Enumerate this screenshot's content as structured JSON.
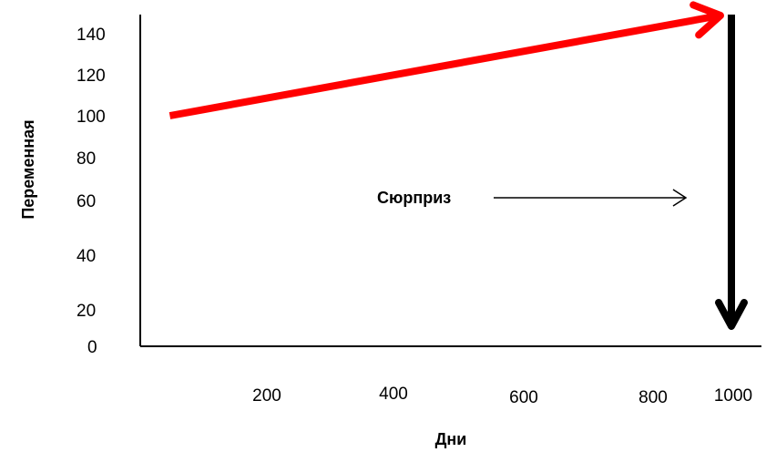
{
  "chart_data": {
    "type": "line",
    "title": "",
    "xlabel": "Дни",
    "ylabel": "Переменная",
    "x_ticks": [
      "200",
      "400",
      "600",
      "800",
      "1000"
    ],
    "y_ticks": [
      "0",
      "20",
      "40",
      "60",
      "80",
      "100",
      "120",
      "140"
    ],
    "xlim": [
      0,
      1000
    ],
    "ylim": [
      0,
      150
    ],
    "grid": false,
    "series": [
      {
        "color": "#ff0000",
        "x": [
          50,
          1000
        ],
        "y": [
          100,
          150
        ]
      }
    ],
    "annotations": [
      {
        "text": "Сюрприз",
        "arrow_direction": "right"
      }
    ],
    "drop_arrow": {
      "color": "#000000",
      "x": 1000,
      "y_from": 150,
      "y_to": 10
    }
  }
}
